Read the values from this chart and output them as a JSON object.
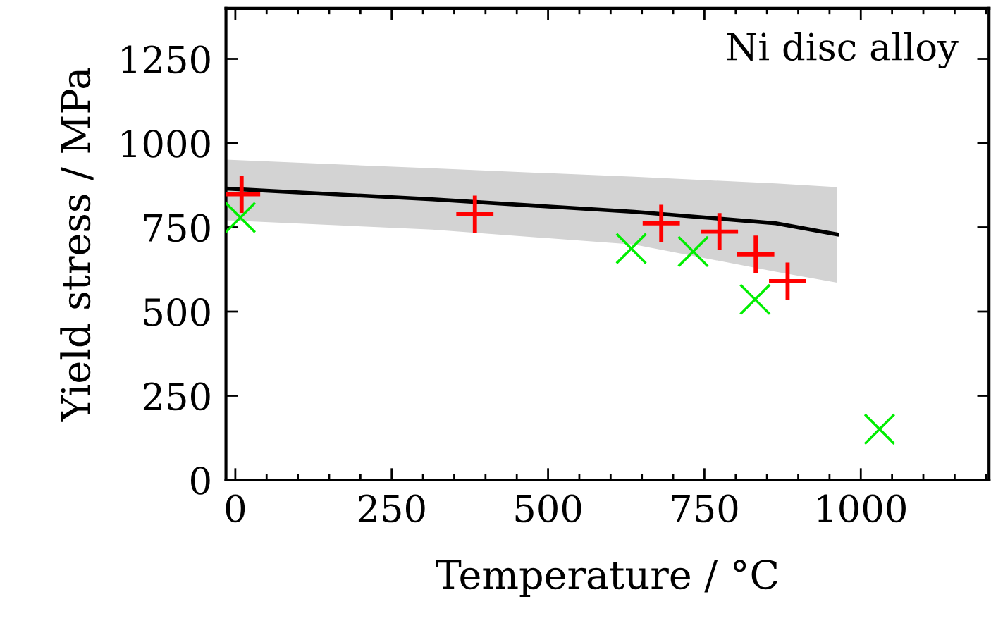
{
  "chart_data": {
    "type": "scatter",
    "xlabel": "Temperature / °C",
    "ylabel": "Yield stress / MPa",
    "annotations": [
      "Ni disc alloy"
    ],
    "xlim": [
      -15,
      1205
    ],
    "xticks": [
      0,
      250,
      500,
      750,
      1000
    ],
    "ylim": [
      0,
      1400
    ],
    "yticks": [
      0,
      250,
      500,
      750,
      1000,
      1250
    ],
    "grid": false,
    "legend": false,
    "series": [
      {
        "type": "line",
        "color": "#000000",
        "line_style": "solid",
        "marker": "none",
        "x": [
          -15,
          315,
          638,
          864,
          962
        ],
        "values": [
          865,
          833,
          796,
          762,
          729
        ],
        "lower": [
          771,
          743,
          699,
          618,
          586
        ],
        "upper": [
          951,
          925,
          900,
          880,
          869
        ]
      },
      {
        "type": "scatter",
        "color": "#ff0000",
        "marker": "plus",
        "x": [
          10,
          383,
          681,
          774,
          832,
          883
        ],
        "values": [
          848,
          789,
          762,
          737,
          670,
          590
        ]
      },
      {
        "type": "scatter",
        "color": "#00ee00",
        "marker": "cross",
        "x": [
          8,
          633,
          732,
          831,
          1030
        ],
        "values": [
          779,
          687,
          678,
          536,
          151
        ]
      }
    ]
  }
}
